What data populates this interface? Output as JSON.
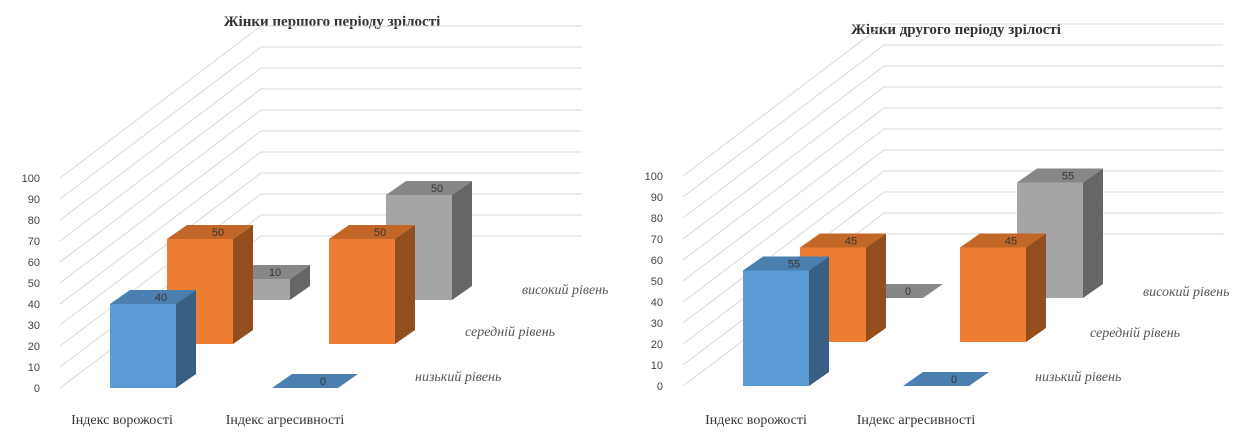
{
  "chart_data": [
    {
      "type": "bar",
      "subtype": "3d-column",
      "title": "Жінки першого періоду зрілості",
      "categories": [
        "Індекс ворожості",
        "Індекс агресивності"
      ],
      "series": [
        {
          "name": "низький рівень",
          "values": [
            40,
            0
          ],
          "color": "#5b9bd5"
        },
        {
          "name": "середній рівень",
          "values": [
            50,
            50
          ],
          "color": "#ed7d31"
        },
        {
          "name": "високий рівень",
          "values": [
            10,
            50
          ],
          "color": "#a5a5a5"
        }
      ],
      "ylim": [
        0,
        100
      ],
      "yticks": [
        "0",
        "10",
        "20",
        "30",
        "40",
        "50",
        "60",
        "70",
        "80",
        "90",
        "100"
      ],
      "data_labels": true,
      "grid": true,
      "legend": "none"
    },
    {
      "type": "bar",
      "subtype": "3d-column",
      "title": "Жінки другого періоду зрілості",
      "categories": [
        "Індекс ворожості",
        "Індекс агресивності"
      ],
      "series": [
        {
          "name": "низький рівень",
          "values": [
            55,
            0
          ],
          "color": "#5b9bd5"
        },
        {
          "name": "середній рівень",
          "values": [
            45,
            45
          ],
          "color": "#ed7d31"
        },
        {
          "name": "високий рівень",
          "values": [
            0,
            55
          ],
          "color": "#a5a5a5"
        }
      ],
      "ylim": [
        0,
        100
      ],
      "yticks": [
        "0",
        "10",
        "20",
        "30",
        "40",
        "50",
        "60",
        "70",
        "80",
        "90",
        "100"
      ],
      "data_labels": true,
      "grid": true,
      "legend": "none"
    }
  ]
}
